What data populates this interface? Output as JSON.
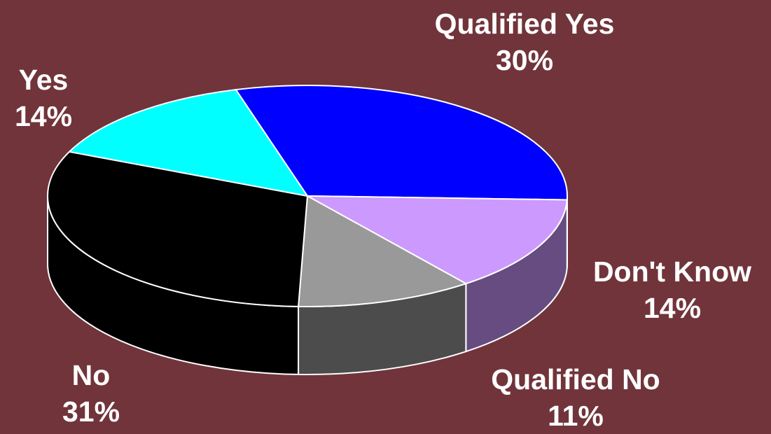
{
  "chart_data": {
    "type": "pie",
    "three_d": true,
    "background": "#71343B",
    "series": [
      {
        "name": "Qualified Yes",
        "value": 30,
        "value_label": "30%",
        "color": "#0000FF",
        "side_color": "#00008C"
      },
      {
        "name": "Don't Know",
        "value": 14,
        "value_label": "14%",
        "color": "#CC99FF",
        "side_color": "#664C80"
      },
      {
        "name": "Qualified No",
        "value": 11,
        "value_label": "11%",
        "color": "#999999",
        "side_color": "#4C4C4C"
      },
      {
        "name": "No",
        "value": 31,
        "value_label": "31%",
        "color": "#000000",
        "side_color": "#000000"
      },
      {
        "name": "Yes",
        "value": 14,
        "value_label": "14%",
        "color": "#00FFFF",
        "side_color": "#008080"
      }
    ]
  }
}
